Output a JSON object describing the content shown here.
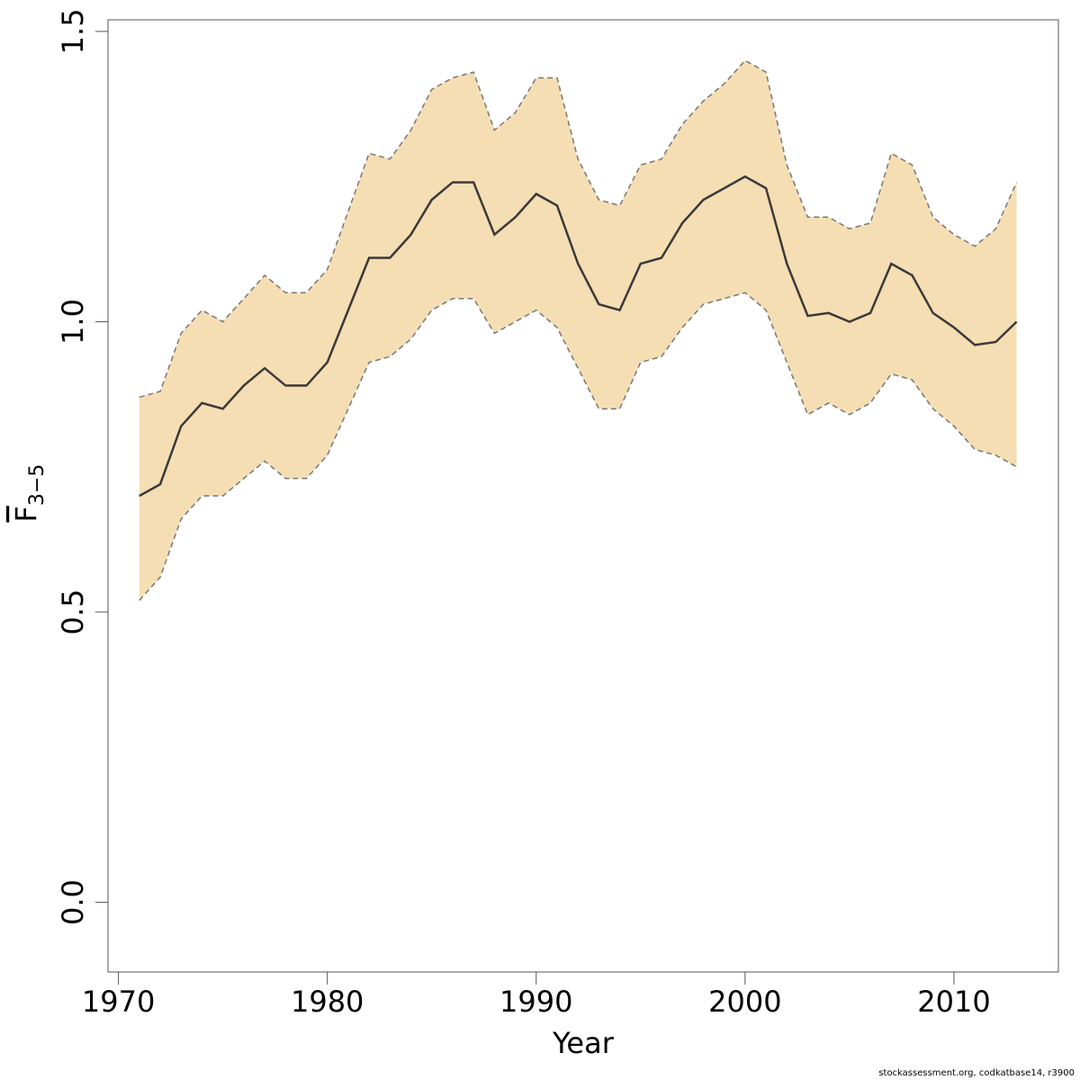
{
  "chart_data": {
    "type": "line",
    "xlabel": "Year",
    "ylabel_main": "F",
    "ylabel_sub": "3−5",
    "xlim": [
      1969.5,
      2015
    ],
    "ylim": [
      -0.12,
      1.52
    ],
    "xticks": [
      1970,
      1980,
      1990,
      2000,
      2010
    ],
    "yticks": [
      0.0,
      0.5,
      1.0,
      1.5
    ],
    "ytick_labels": [
      "0.0",
      "0.5",
      "1.0",
      "1.5"
    ],
    "band_color": "#f5deb3",
    "line_color": "#3a3a3a",
    "bound_color": "#777777",
    "x": [
      1971,
      1972,
      1973,
      1974,
      1975,
      1976,
      1977,
      1978,
      1979,
      1980,
      1981,
      1982,
      1983,
      1984,
      1985,
      1986,
      1987,
      1988,
      1989,
      1990,
      1991,
      1992,
      1993,
      1994,
      1995,
      1996,
      1997,
      1998,
      1999,
      2000,
      2001,
      2002,
      2003,
      2004,
      2005,
      2006,
      2007,
      2008,
      2009,
      2010,
      2011,
      2012,
      2013
    ],
    "series": [
      {
        "role": "estimate",
        "values": [
          0.7,
          0.72,
          0.82,
          0.86,
          0.85,
          0.89,
          0.92,
          0.89,
          0.89,
          0.93,
          1.02,
          1.11,
          1.11,
          1.15,
          1.21,
          1.24,
          1.24,
          1.15,
          1.18,
          1.22,
          1.2,
          1.1,
          1.03,
          1.02,
          1.1,
          1.11,
          1.17,
          1.21,
          1.23,
          1.25,
          1.23,
          1.1,
          1.01,
          1.015,
          1.0,
          1.015,
          1.1,
          1.08,
          1.015,
          0.99,
          0.96,
          0.965,
          1.0
        ]
      },
      {
        "role": "upper",
        "values": [
          0.87,
          0.88,
          0.98,
          1.02,
          1.0,
          1.04,
          1.08,
          1.05,
          1.05,
          1.09,
          1.19,
          1.29,
          1.28,
          1.33,
          1.4,
          1.42,
          1.43,
          1.33,
          1.36,
          1.42,
          1.42,
          1.28,
          1.21,
          1.2,
          1.27,
          1.28,
          1.34,
          1.38,
          1.41,
          1.45,
          1.43,
          1.27,
          1.18,
          1.18,
          1.16,
          1.17,
          1.29,
          1.27,
          1.18,
          1.15,
          1.13,
          1.16,
          1.24
        ]
      },
      {
        "role": "lower",
        "values": [
          0.52,
          0.56,
          0.66,
          0.7,
          0.7,
          0.73,
          0.76,
          0.73,
          0.73,
          0.77,
          0.85,
          0.93,
          0.94,
          0.97,
          1.02,
          1.04,
          1.04,
          0.98,
          1.0,
          1.02,
          0.99,
          0.92,
          0.85,
          0.85,
          0.93,
          0.94,
          0.99,
          1.03,
          1.04,
          1.05,
          1.02,
          0.93,
          0.84,
          0.86,
          0.84,
          0.86,
          0.91,
          0.9,
          0.85,
          0.82,
          0.78,
          0.77,
          0.75
        ]
      }
    ]
  },
  "footer": {
    "credit": "stockassessment.org, codkatbase14, r3900"
  }
}
